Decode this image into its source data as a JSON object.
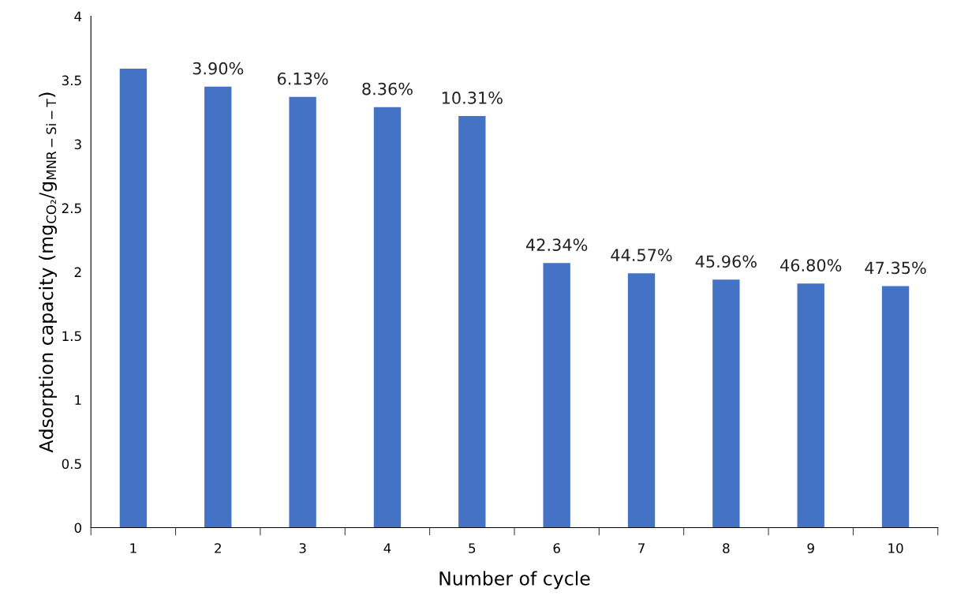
{
  "chart_data": {
    "type": "bar",
    "categories": [
      "1",
      "2",
      "3",
      "4",
      "5",
      "6",
      "7",
      "8",
      "9",
      "10"
    ],
    "values": [
      3.59,
      3.45,
      3.37,
      3.29,
      3.22,
      2.07,
      1.99,
      1.94,
      1.91,
      1.89
    ],
    "annotations": [
      {
        "text": "3.90%",
        "x": "2",
        "y": 3.45
      },
      {
        "text": "6.13%",
        "x": "3",
        "y": 3.37
      },
      {
        "text": "8.36%",
        "x": "4",
        "y": 3.29
      },
      {
        "text": "10.31%",
        "x": "5",
        "y": 3.22
      },
      {
        "text": "42.34%",
        "x": "6",
        "y": 2.07
      },
      {
        "text": "44.57%",
        "x": "7",
        "y": 1.99
      },
      {
        "text": "45.96%",
        "x": "8",
        "y": 1.94
      },
      {
        "text": "46.80%",
        "x": "9",
        "y": 1.91
      },
      {
        "text": "47.35%",
        "x": "10",
        "y": 1.89
      }
    ],
    "color": "#4472c4",
    "xlabel": "Number of cycle",
    "ylabel": "Adsorption capacity (mg$_{CO₂}$/g$_{MNR−Si−T}$)",
    "ylim": [
      0,
      4
    ],
    "yticks": [
      0,
      0.5,
      1,
      1.5,
      2,
      2.5,
      3,
      3.5,
      4
    ],
    "grid": false,
    "legend": false
  }
}
